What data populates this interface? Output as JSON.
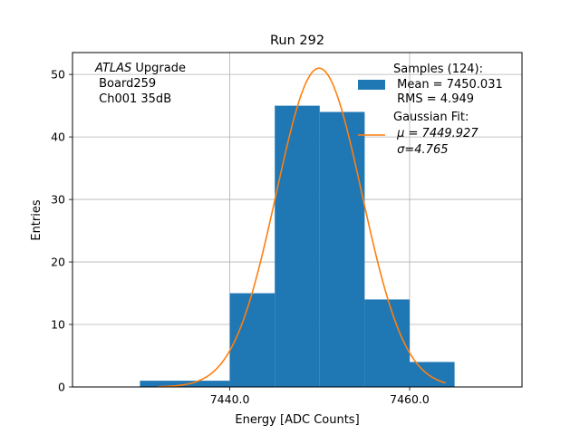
{
  "chart_data": {
    "type": "bar",
    "title": "Run 292",
    "xlabel": "Energy [ADC Counts]",
    "ylabel": "Entries",
    "xlim": [
      7422.5,
      7472.5
    ],
    "ylim": [
      0,
      53.5
    ],
    "grid": true,
    "x_ticks": [
      {
        "value": 7440,
        "label": "7440.0"
      },
      {
        "value": 7460,
        "label": "7460.0"
      }
    ],
    "y_ticks": [
      {
        "value": 0,
        "label": "0"
      },
      {
        "value": 10,
        "label": "10"
      },
      {
        "value": 20,
        "label": "20"
      },
      {
        "value": 30,
        "label": "30"
      },
      {
        "value": 40,
        "label": "40"
      },
      {
        "value": 50,
        "label": "50"
      }
    ],
    "histogram": {
      "name": "Samples (124):",
      "color": "#1f77b4",
      "bins": [
        {
          "x0": 7430,
          "x1": 7435,
          "count": 1
        },
        {
          "x0": 7435,
          "x1": 7440,
          "count": 1
        },
        {
          "x0": 7440,
          "x1": 7445,
          "count": 15
        },
        {
          "x0": 7445,
          "x1": 7450,
          "count": 45
        },
        {
          "x0": 7450,
          "x1": 7455,
          "count": 44
        },
        {
          "x0": 7455,
          "x1": 7460,
          "count": 14
        },
        {
          "x0": 7460,
          "x1": 7465,
          "count": 4
        }
      ]
    },
    "gaussian_fit": {
      "name": "Gaussian Fit:",
      "color": "#ff7f0e",
      "mu": 7449.927,
      "sigma": 4.765,
      "amplitude": 51,
      "x_range": [
        7432,
        7464
      ]
    },
    "annotation": {
      "line1_italic": "ATLAS",
      "line1_rest": " Upgrade",
      "line2": " Board259",
      "line3": " Ch001 35dB"
    },
    "legend": {
      "placement": "top-right",
      "samples_title": "Samples (124):",
      "samples_mean": " Mean = 7450.031",
      "samples_rms": " RMS = 4.949",
      "fit_title": "Gaussian Fit:",
      "fit_mu": " μ = 7449.927",
      "fit_sigma": " σ=4.765"
    }
  }
}
